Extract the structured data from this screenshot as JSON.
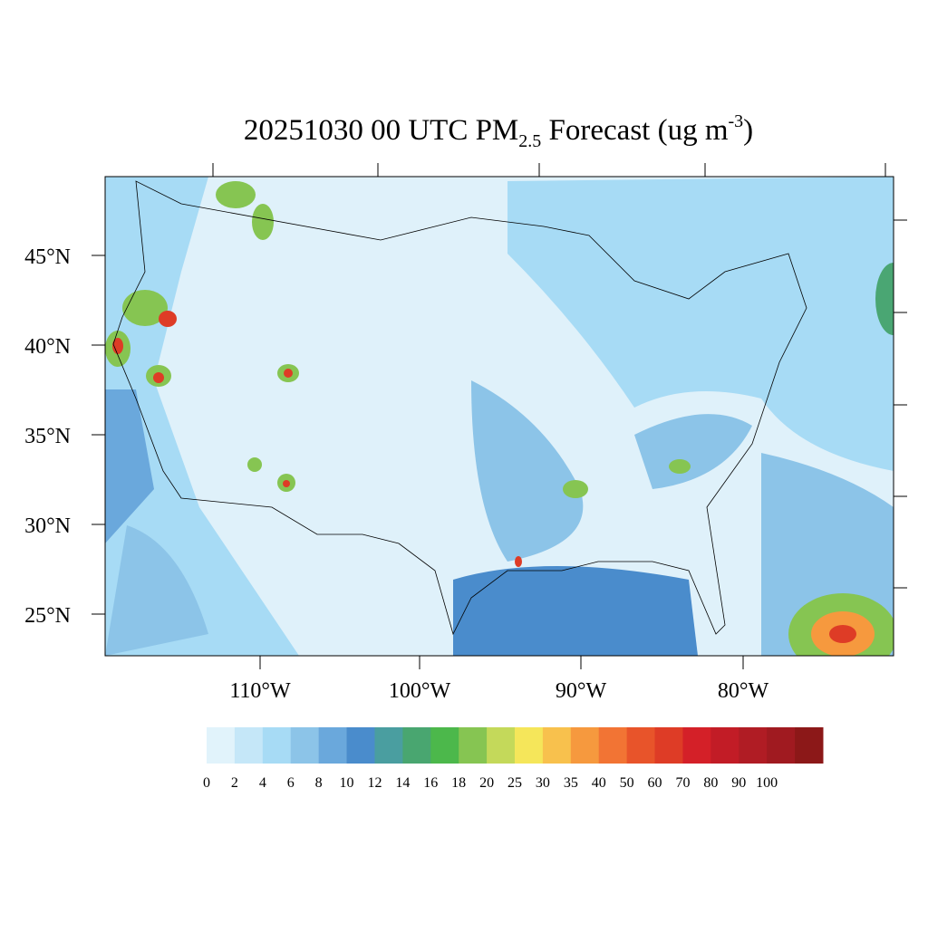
{
  "title": {
    "main": "20251030 00 UTC PM",
    "sub": "2.5",
    "after": " Forecast (ug m",
    "sup": "-3",
    "end": ")"
  },
  "lat_labels": [
    "45°N",
    "40°N",
    "35°N",
    "30°N",
    "25°N"
  ],
  "lon_labels": [
    "110°W",
    "100°W",
    "90°W",
    "80°W"
  ],
  "colorbar": {
    "labels": [
      0,
      2,
      4,
      6,
      8,
      10,
      12,
      14,
      16,
      18,
      20,
      25,
      30,
      35,
      40,
      50,
      60,
      70,
      80,
      90,
      100
    ],
    "colors": [
      "#e1f3fb",
      "#c5e7f8",
      "#a7dbf5",
      "#8cc4e8",
      "#6aa8dc",
      "#4a8ccc",
      "#4a9ea0",
      "#49a670",
      "#4cb84b",
      "#86c552",
      "#c4d95a",
      "#f5e65a",
      "#f8c14d",
      "#f6993e",
      "#f27434",
      "#e8542a",
      "#de3c26",
      "#d42028",
      "#c21c26",
      "#b01c24",
      "#a01a20",
      "#8c1818"
    ]
  }
}
